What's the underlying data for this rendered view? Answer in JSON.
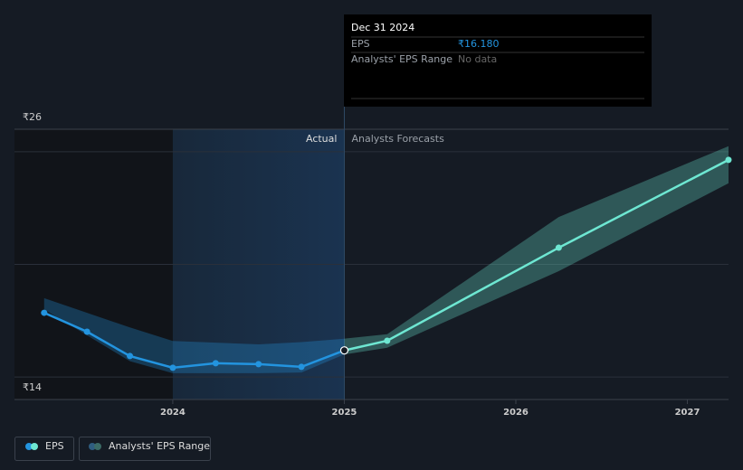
{
  "chart_data": {
    "type": "line",
    "xlim": [
      2023.077,
      2027.24
    ],
    "xticks": [
      2024,
      2025,
      2026,
      2027
    ],
    "ylim": [
      14,
      26
    ],
    "yticks": [
      {
        "value": 26,
        "label": "₹26"
      },
      {
        "value": 14,
        "label": "₹14"
      }
    ],
    "grid": [
      15,
      20,
      25
    ],
    "divider": 2025,
    "highlight": [
      2024,
      2025
    ],
    "divider_labels": {
      "left": "Actual",
      "right": "Analysts Forecasts"
    },
    "series": [
      {
        "name": "EPS",
        "color": "#2394df",
        "forecast_color": "#6ee7d2",
        "x": [
          2023.25,
          2023.5,
          2023.75,
          2024,
          2024.25,
          2024.5,
          2024.75,
          2025,
          2025.25,
          2026.25,
          2027.24
        ],
        "values": [
          17.85,
          17.01,
          15.93,
          15.41,
          15.61,
          15.57,
          15.45,
          16.18,
          16.61,
          20.74,
          24.64
        ]
      }
    ],
    "range": {
      "name": "Analysts' EPS Range",
      "color": "#2394df",
      "forecast_color": "#6ee7d2",
      "x": [
        2023.25,
        2023.75,
        2024,
        2024.5,
        2024.75,
        2025,
        2025.25,
        2026.25,
        2027.24
      ],
      "high": [
        18.5,
        17.2,
        16.6,
        16.45,
        16.55,
        16.7,
        16.9,
        22.1,
        25.25
      ],
      "low": [
        18.0,
        15.7,
        15.17,
        15.17,
        15.2,
        16.0,
        16.3,
        19.7,
        23.6
      ]
    },
    "tooltip": {
      "title": "Dec 31 2024",
      "rows": [
        {
          "label": "EPS",
          "value": "₹16.180"
        },
        {
          "label": "Analysts' EPS Range",
          "value": "No data"
        }
      ]
    }
  }
}
